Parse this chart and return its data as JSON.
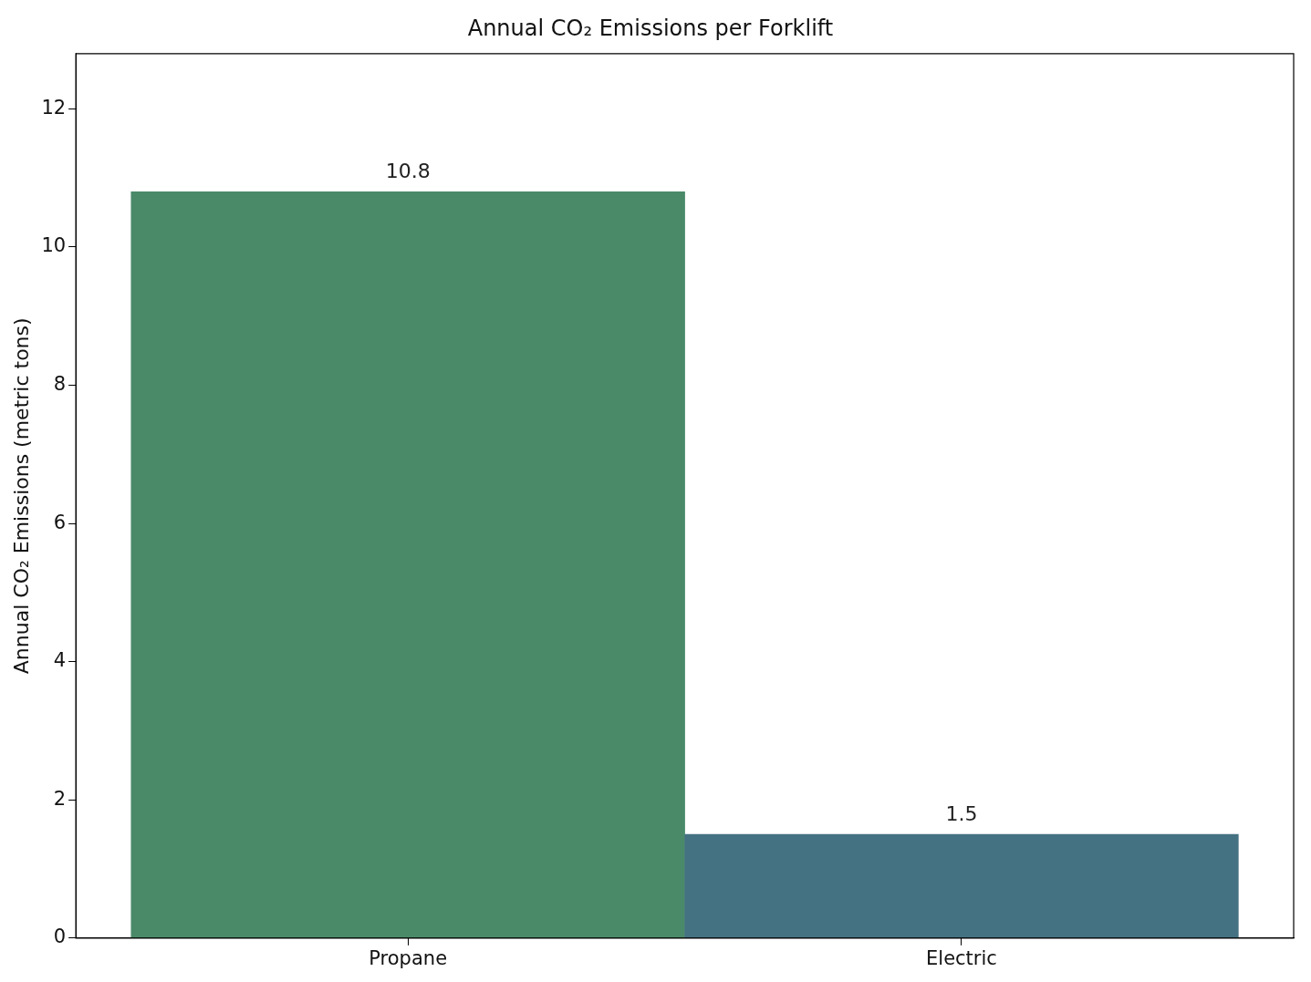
{
  "chart_data": {
    "type": "bar",
    "title": "Annual CO₂ Emissions per Forklift",
    "ylabel": "Annual CO₂ Emissions (metric tons)",
    "categories": [
      "Propane",
      "Electric"
    ],
    "values": [
      10.8,
      1.5
    ],
    "colors": [
      "#4a8a69",
      "#457282"
    ],
    "ylim": [
      0,
      12.8
    ],
    "yticks": [
      0,
      2,
      4,
      6,
      8,
      10,
      12
    ],
    "grid": false,
    "legend": false,
    "data_labels": true
  }
}
